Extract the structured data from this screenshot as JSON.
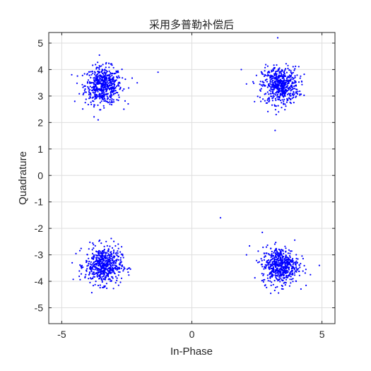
{
  "chart_data": {
    "type": "scatter",
    "title": "采用多普勒补偿后",
    "xlabel": "In-Phase",
    "ylabel": "Quadrature",
    "xlim": [
      -5.5,
      5.5
    ],
    "ylim": [
      -5.6,
      5.4
    ],
    "xticks": [
      -5,
      0,
      5
    ],
    "yticks": [
      5,
      4,
      3,
      2,
      1,
      0,
      -1,
      -2,
      -3,
      -4,
      -5
    ],
    "grid": true,
    "marker_color": "#0000ff",
    "clusters": [
      {
        "center": [
          -3.4,
          3.4
        ],
        "spread": 0.35,
        "count": 560
      },
      {
        "center": [
          3.4,
          3.4
        ],
        "spread": 0.35,
        "count": 560
      },
      {
        "center": [
          -3.4,
          -3.4
        ],
        "spread": 0.35,
        "count": 560
      },
      {
        "center": [
          3.4,
          -3.4
        ],
        "spread": 0.35,
        "count": 560
      }
    ],
    "outliers": [
      {
        "x": -1.3,
        "y": 3.9
      },
      {
        "x": 1.1,
        "y": -1.6
      },
      {
        "x": 3.3,
        "y": 5.2
      },
      {
        "x": 1.9,
        "y": 4.0
      },
      {
        "x": 3.2,
        "y": 1.7
      },
      {
        "x": -4.5,
        "y": 2.8
      },
      {
        "x": -2.1,
        "y": 3.5
      },
      {
        "x": 2.1,
        "y": -3.0
      },
      {
        "x": 4.9,
        "y": -3.4
      },
      {
        "x": -4.6,
        "y": -3.3
      }
    ]
  }
}
